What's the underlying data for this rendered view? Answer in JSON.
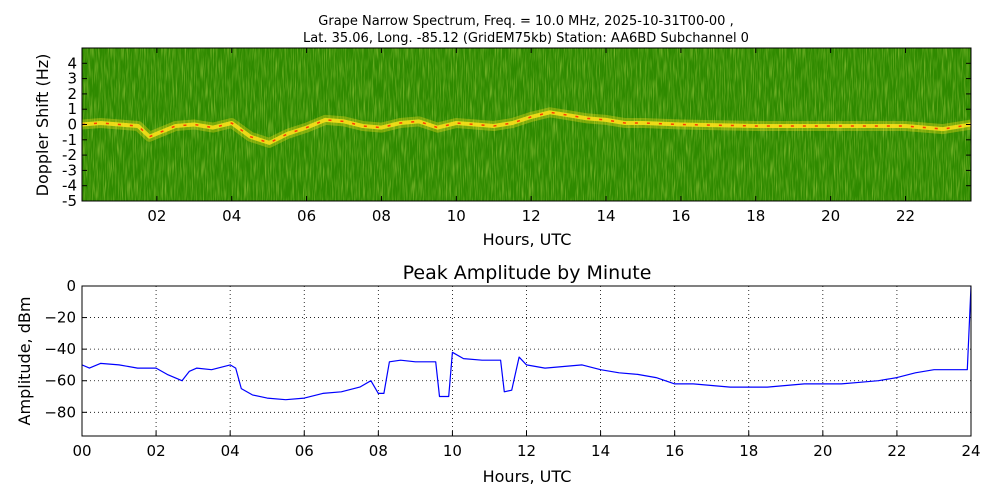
{
  "figure": {
    "title_line1": "Grape Narrow Spectrum, Freq. = 10.0 MHz, 2025-10-31T00-00 ,",
    "title_line2": "Lat.  35.06, Long. -85.12 (GridEM75kb) Station: AA6BD Subchannel 0"
  },
  "chart_data": [
    {
      "type": "heatmap",
      "title": "",
      "xlabel": "Hours, UTC",
      "ylabel": "Doppler Shift (Hz)",
      "xlim": [
        0,
        23.75
      ],
      "ylim": [
        -5,
        5
      ],
      "xtick_values": [
        2,
        4,
        6,
        8,
        10,
        12,
        14,
        16,
        18,
        20,
        22
      ],
      "xtick_labels": [
        "02",
        "04",
        "06",
        "08",
        "10",
        "12",
        "14",
        "16",
        "18",
        "20",
        "22"
      ],
      "ytick_values": [
        4,
        3,
        2,
        1,
        0,
        -1,
        -2,
        -3,
        -4,
        -5
      ],
      "ytick_labels": [
        "4",
        "3",
        "2",
        "1",
        "0",
        "-1",
        "-2",
        "-3",
        "-4",
        "-5"
      ],
      "colors": {
        "background": "#2f8a00",
        "trace": "#ffe21a",
        "peak": "#ff2a00"
      },
      "trace": {
        "hours": [
          0,
          0.5,
          1,
          1.5,
          1.8,
          2.5,
          3,
          3.5,
          4,
          4.5,
          5,
          5.5,
          6,
          6.5,
          7,
          7.5,
          8,
          8.5,
          9,
          9.5,
          10,
          10.5,
          11,
          11.5,
          12,
          12.5,
          13,
          13.5,
          14,
          14.5,
          15,
          16,
          18,
          20,
          22,
          23,
          23.75
        ],
        "doppler_hz": [
          0,
          0.1,
          0.0,
          -0.1,
          -0.8,
          -0.1,
          0.0,
          -0.2,
          0.1,
          -0.8,
          -1.2,
          -0.6,
          -0.2,
          0.3,
          0.2,
          -0.1,
          -0.2,
          0.1,
          0.2,
          -0.2,
          0.1,
          0.0,
          -0.1,
          0.1,
          0.5,
          0.8,
          0.6,
          0.4,
          0.3,
          0.1,
          0.1,
          0.0,
          -0.1,
          -0.1,
          -0.1,
          -0.3,
          0.0
        ]
      }
    },
    {
      "type": "line",
      "title": "Peak Amplitude by Minute",
      "xlabel": "Hours, UTC",
      "ylabel": "Amplitude, dBm",
      "xlim": [
        0,
        24
      ],
      "ylim": [
        -95,
        0
      ],
      "grid": true,
      "xtick_values": [
        0,
        2,
        4,
        6,
        8,
        10,
        12,
        14,
        16,
        18,
        20,
        22,
        24
      ],
      "xtick_labels": [
        "00",
        "02",
        "04",
        "06",
        "08",
        "10",
        "12",
        "14",
        "16",
        "18",
        "20",
        "22",
        "24"
      ],
      "ytick_values": [
        0,
        -20,
        -40,
        -60,
        -80
      ],
      "ytick_labels": [
        "0",
        "−20",
        "−40",
        "−60",
        "−80"
      ],
      "line_color": "#0000ff",
      "x": [
        0,
        0.2,
        0.5,
        1,
        1.5,
        2,
        2.3,
        2.7,
        2.9,
        3.1,
        3.5,
        4,
        4.15,
        4.3,
        4.6,
        5,
        5.5,
        6,
        6.5,
        7,
        7.5,
        7.8,
        8,
        8.15,
        8.3,
        8.6,
        9,
        9.3,
        9.55,
        9.65,
        9.9,
        10,
        10.3,
        10.8,
        11.3,
        11.4,
        11.6,
        11.8,
        12,
        12.5,
        13,
        13.5,
        14,
        14.5,
        15,
        15.5,
        16,
        16.5,
        17,
        17.5,
        18,
        18.5,
        19,
        19.5,
        20,
        20.5,
        21,
        21.5,
        22,
        22.5,
        23,
        23.5,
        23.9,
        24
      ],
      "y": [
        -50,
        -52,
        -49,
        -50,
        -52,
        -52,
        -56,
        -60,
        -54,
        -52,
        -53,
        -50,
        -52,
        -65,
        -69,
        -71,
        -72,
        -71,
        -68,
        -67,
        -64,
        -60,
        -68,
        -68,
        -48,
        -47,
        -48,
        -48,
        -48,
        -70,
        -70,
        -42,
        -46,
        -47,
        -47,
        -67,
        -66,
        -45,
        -50,
        -52,
        -51,
        -50,
        -53,
        -55,
        -56,
        -58,
        -62,
        -62,
        -63,
        -64,
        -64,
        -64,
        -63,
        -62,
        -62,
        -62,
        -61,
        -60,
        -58,
        -55,
        -53,
        -53,
        -53,
        0
      ]
    }
  ]
}
